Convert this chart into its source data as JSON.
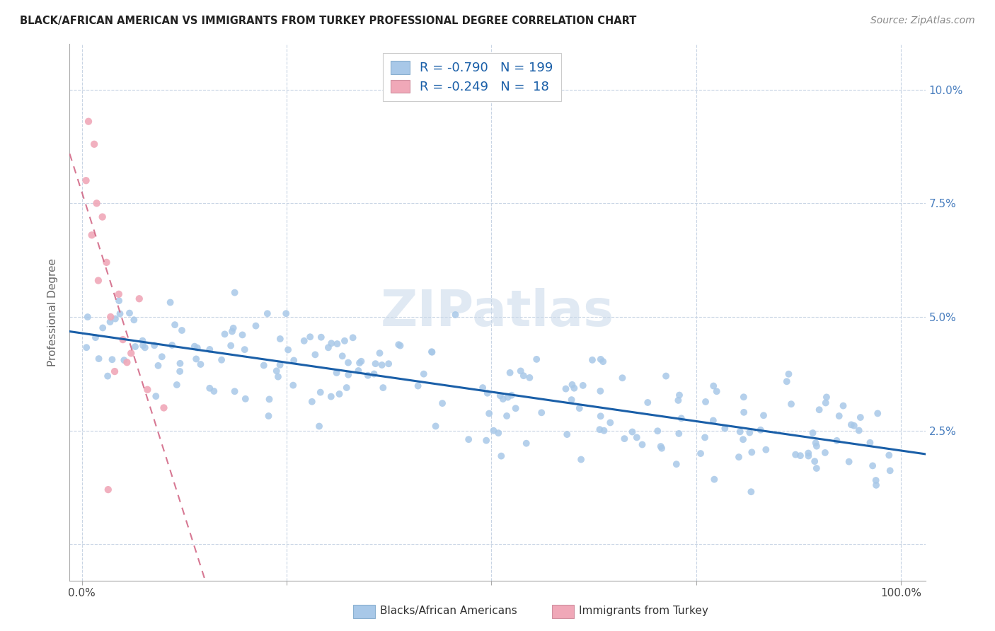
{
  "title": "BLACK/AFRICAN AMERICAN VS IMMIGRANTS FROM TURKEY PROFESSIONAL DEGREE CORRELATION CHART",
  "source": "Source: ZipAtlas.com",
  "ylabel": "Professional Degree",
  "blue_R": -0.79,
  "blue_N": 199,
  "pink_R": -0.249,
  "pink_N": 18,
  "blue_color": "#a8c8e8",
  "blue_line_color": "#1a5fa8",
  "pink_color": "#f0a8b8",
  "pink_line_color": "#d04060",
  "watermark": "ZIPatlas",
  "grid_color": "#c8d4e4",
  "background_color": "#ffffff",
  "xlim": [
    -1.5,
    103
  ],
  "ylim": [
    -0.8,
    11.0
  ],
  "xticks": [
    0,
    25,
    50,
    75,
    100
  ],
  "yticks": [
    0,
    2.5,
    5.0,
    7.5,
    10.0
  ],
  "right_yticklabels": [
    "",
    "2.5%",
    "5.0%",
    "7.5%",
    "10.0%"
  ],
  "tick_color": "#4a7fbf",
  "legend_label_color": "#1a5fa8"
}
